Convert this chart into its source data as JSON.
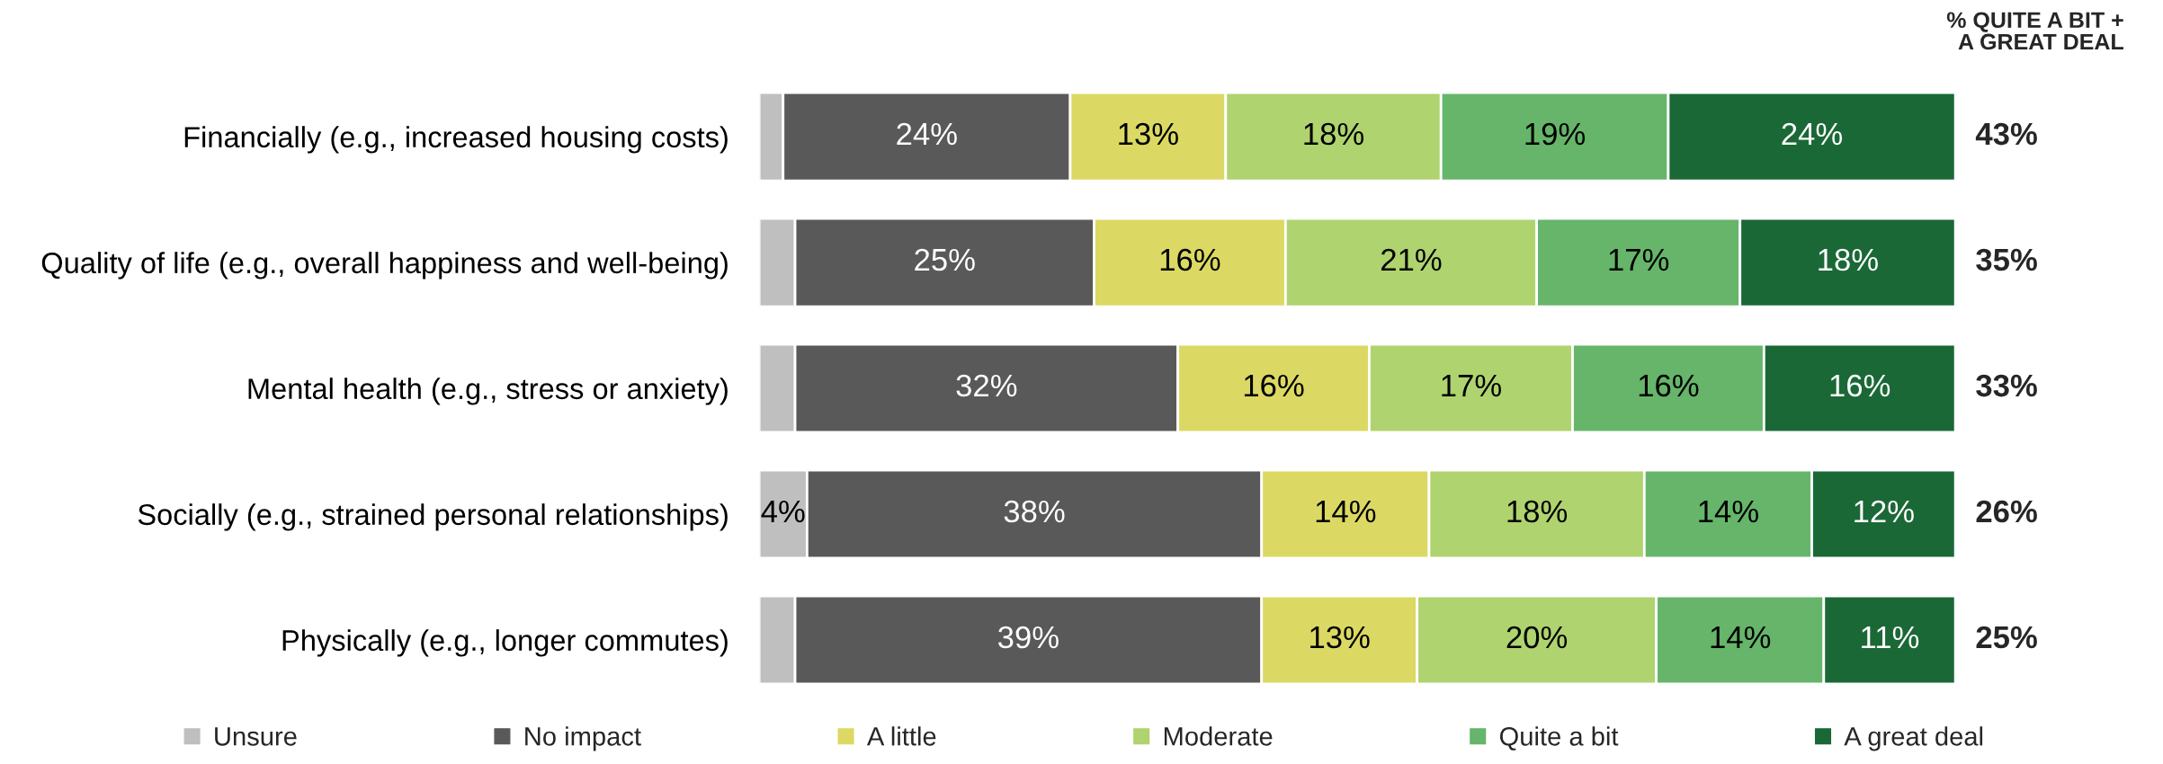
{
  "chart_data": {
    "type": "bar",
    "orientation": "horizontal",
    "stacked": true,
    "categories": [
      "Financially (e.g., increased housing costs)",
      "Quality of life (e.g., overall happiness and well-being)",
      "Mental health (e.g., stress or anxiety)",
      "Socially (e.g., strained personal relationships)",
      "Physically (e.g., longer commutes)"
    ],
    "series": [
      {
        "name": "Unsure",
        "color": "#bfbfbf",
        "values": [
          2,
          3,
          3,
          4,
          3
        ],
        "value_labels": [
          null,
          null,
          null,
          "4%",
          null
        ]
      },
      {
        "name": "No impact",
        "color": "#595959",
        "values": [
          24,
          25,
          32,
          38,
          39
        ],
        "value_labels": [
          "24%",
          "25%",
          "32%",
          "38%",
          "39%"
        ]
      },
      {
        "name": "A little",
        "color": "#dbd963",
        "values": [
          13,
          16,
          16,
          14,
          13
        ],
        "value_labels": [
          "13%",
          "16%",
          "16%",
          "14%",
          "13%"
        ]
      },
      {
        "name": "Moderate",
        "color": "#afd36f",
        "values": [
          18,
          21,
          17,
          18,
          20
        ],
        "value_labels": [
          "18%",
          "21%",
          "17%",
          "18%",
          "20%"
        ]
      },
      {
        "name": "Quite a bit",
        "color": "#66b56a",
        "values": [
          19,
          17,
          16,
          14,
          14
        ],
        "value_labels": [
          "19%",
          "17%",
          "16%",
          "14%",
          "14%"
        ]
      },
      {
        "name": "A great deal",
        "color": "#1b6837",
        "values": [
          24,
          18,
          16,
          12,
          11
        ],
        "value_labels": [
          "24%",
          "18%",
          "16%",
          "12%",
          "11%"
        ]
      }
    ],
    "annotations": [
      "% QUITE A BIT +\nA GREAT DEAL",
      "43%",
      "35%",
      "33%",
      "26%",
      "25%"
    ],
    "legend": "bottom",
    "tick_labels": "y"
  }
}
